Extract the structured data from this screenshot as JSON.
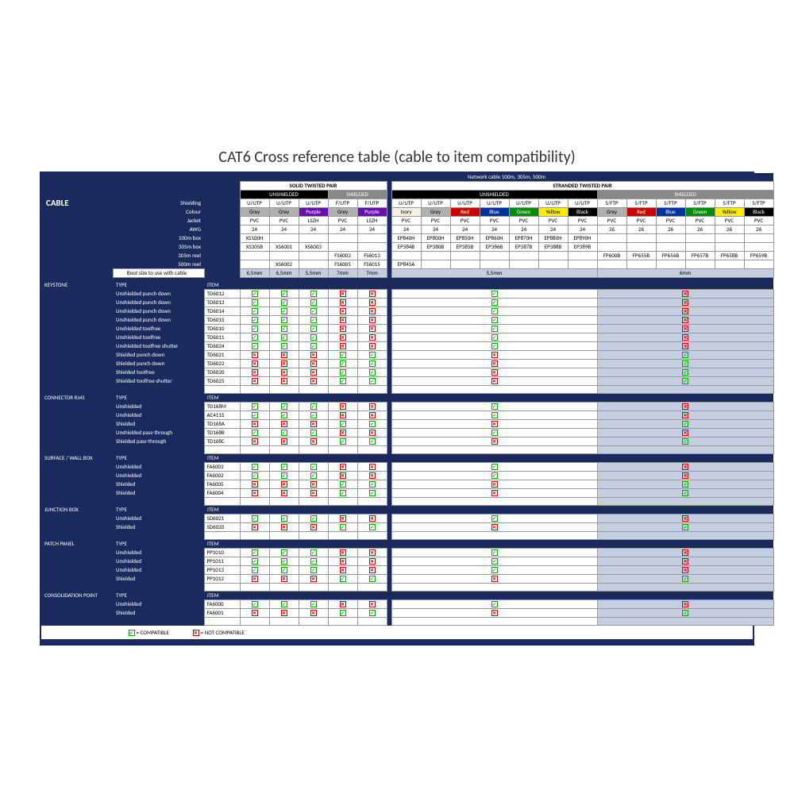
{
  "title": "CAT6 Cross reference table (cable to item compatibility)",
  "subtitle": "Network cable 100m, 305m, 500m",
  "cable_label": "CABLE",
  "solid_hdr": "SOLID TWISTED PAIR",
  "stranded_hdr": "STRANDED TWISTED PAIR",
  "unshielded": "UNSHIELDED",
  "shielded": "SHIELDED",
  "rows_meta": {
    "shielding": "Shielding",
    "colour": "Colour",
    "jacket": "Jacket",
    "awg": "AWG",
    "b100": "100m box",
    "b305": "305m box",
    "r305": "305m reel",
    "r500": "500m reel",
    "boot": "Boot size to use with cable"
  },
  "solid": {
    "shield": [
      "U/UTP",
      "U/UTP",
      "U/UTP",
      "F/UTP",
      "F/UTP"
    ],
    "colour": [
      {
        "t": "Grey",
        "bg": "#b0b0b0",
        "fg": "#000"
      },
      {
        "t": "Grey",
        "bg": "#b0b0b0",
        "fg": "#000"
      },
      {
        "t": "Purple",
        "bg": "#6a0dad",
        "fg": "#fff"
      },
      {
        "t": "Grey",
        "bg": "#b0b0b0",
        "fg": "#000"
      },
      {
        "t": "Purple",
        "bg": "#6a0dad",
        "fg": "#fff"
      }
    ],
    "jacket": [
      "PVC",
      "PVC",
      "LSZH",
      "PVC",
      "LSZH"
    ],
    "awg": [
      "24",
      "24",
      "24",
      "24",
      "24"
    ],
    "b100": [
      "XS100H",
      "",
      "",
      "",
      ""
    ],
    "b305": [
      "XS305B",
      "XS6001",
      "XS6003",
      "",
      ""
    ],
    "r305": [
      "",
      "",
      "",
      "FS6003",
      "FS6013"
    ],
    "r500": [
      "",
      "XS6002",
      "",
      "FS6005",
      "FS6015"
    ],
    "boot": [
      "6,5mm",
      "6,5mm",
      "5,5mm",
      "7mm",
      "7mm"
    ]
  },
  "stranded": {
    "shield": [
      "U/UTP",
      "U/UTP",
      "U/UTP",
      "U/UTP",
      "U/UTP",
      "U/UTP",
      "U/UTP",
      "S/FTP",
      "S/FTP",
      "S/FTP",
      "S/FTP",
      "S/FTP",
      "S/FTP"
    ],
    "colour": [
      {
        "t": "Ivory",
        "bg": "#f5f0e1",
        "fg": "#000"
      },
      {
        "t": "Grey",
        "bg": "#b0b0b0",
        "fg": "#000"
      },
      {
        "t": "Red",
        "bg": "#c00",
        "fg": "#fff"
      },
      {
        "t": "Blue",
        "bg": "#0033a0",
        "fg": "#fff"
      },
      {
        "t": "Green",
        "bg": "#0a8a0a",
        "fg": "#fff"
      },
      {
        "t": "Yellow",
        "bg": "#ffeb00",
        "fg": "#000"
      },
      {
        "t": "Black",
        "bg": "#000",
        "fg": "#fff"
      },
      {
        "t": "Grey",
        "bg": "#b0b0b0",
        "fg": "#000"
      },
      {
        "t": "Red",
        "bg": "#c00",
        "fg": "#fff"
      },
      {
        "t": "Blue",
        "bg": "#0033a0",
        "fg": "#fff"
      },
      {
        "t": "Green",
        "bg": "#0a8a0a",
        "fg": "#fff"
      },
      {
        "t": "Yellow",
        "bg": "#ffeb00",
        "fg": "#000"
      },
      {
        "t": "Black",
        "bg": "#000",
        "fg": "#fff"
      }
    ],
    "jacket": [
      "PVC",
      "PVC",
      "PVC",
      "PVC",
      "PVC",
      "PVC",
      "PVC",
      "PVC",
      "PVC",
      "PVC",
      "PVC",
      "PVC",
      "PVC"
    ],
    "awg": [
      "24",
      "24",
      "24",
      "24",
      "24",
      "24",
      "24",
      "26",
      "26",
      "26",
      "26",
      "26",
      "26"
    ],
    "b100": [
      "EP840H",
      "EP800H",
      "EP850H",
      "EP860H",
      "EP870H",
      "EP880H",
      "EP890H",
      "",
      "",
      "",
      "",
      "",
      ""
    ],
    "b305": [
      "EP384B",
      "EP380B",
      "EP385B",
      "EP386B",
      "EP387B",
      "EP388B",
      "EP389B",
      "",
      "",
      "",
      "",
      "",
      ""
    ],
    "r305": [
      "",
      "",
      "",
      "",
      "",
      "",
      "",
      "FP600B",
      "FP655B",
      "FP656B",
      "FP657B",
      "FP658B",
      "FP659B"
    ],
    "r500": [
      "EP845A",
      "",
      "",
      "",
      "",
      "",
      "",
      "",
      "",
      "",
      "",
      "",
      ""
    ],
    "boot_u": "5,5mm",
    "boot_s": "6mm"
  },
  "sections": [
    {
      "name": "KEYSTONE",
      "rows": [
        {
          "type": "Unshielded punch down",
          "item": "TD6012",
          "s": [
            "Y",
            "Y",
            "Y",
            "N",
            "N"
          ],
          "u": "Y",
          "sh": "N"
        },
        {
          "type": "Unshielded punch down",
          "item": "TD6013",
          "s": [
            "Y",
            "Y",
            "Y",
            "N",
            "N"
          ],
          "u": "Y",
          "sh": "N"
        },
        {
          "type": "Unshielded punch down",
          "item": "TD6014",
          "s": [
            "Y",
            "Y",
            "Y",
            "N",
            "N"
          ],
          "u": "Y",
          "sh": "N"
        },
        {
          "type": "Unshielded punch down",
          "item": "TD6015",
          "s": [
            "Y",
            "Y",
            "Y",
            "N",
            "N"
          ],
          "u": "Y",
          "sh": "N"
        },
        {
          "type": "Unshielded toolfree",
          "item": "TD6010",
          "s": [
            "Y",
            "Y",
            "Y",
            "N",
            "N"
          ],
          "u": "Y",
          "sh": "N"
        },
        {
          "type": "Unshielded toolfree",
          "item": "TD6011",
          "s": [
            "Y",
            "Y",
            "Y",
            "N",
            "N"
          ],
          "u": "Y",
          "sh": "N"
        },
        {
          "type": "Unshielded toolfree shutter",
          "item": "TD6024",
          "s": [
            "Y",
            "Y",
            "Y",
            "N",
            "N"
          ],
          "u": "Y",
          "sh": "N"
        },
        {
          "type": "Shielded punch down",
          "item": "TD6021",
          "s": [
            "N",
            "N",
            "N",
            "Y",
            "Y"
          ],
          "u": "N",
          "sh": "Y"
        },
        {
          "type": "Shielded punch down",
          "item": "TD6022",
          "s": [
            "N",
            "N",
            "N",
            "Y",
            "Y"
          ],
          "u": "N",
          "sh": "Y"
        },
        {
          "type": "Shielded toolfree",
          "item": "TD6020",
          "s": [
            "N",
            "N",
            "N",
            "Y",
            "Y"
          ],
          "u": "N",
          "sh": "Y"
        },
        {
          "type": "Shielded toolfree shutter",
          "item": "TD6025",
          "s": [
            "N",
            "N",
            "N",
            "Y",
            "Y"
          ],
          "u": "N",
          "sh": "Y"
        }
      ]
    },
    {
      "name": "CONNECTOR RJ45",
      "rows": [
        {
          "type": "Unshielded",
          "item": "TD168M",
          "s": [
            "Y",
            "Y",
            "Y",
            "N",
            "N"
          ],
          "u": "Y",
          "sh": "N"
        },
        {
          "type": "Unshielded",
          "item": "AC4115",
          "s": [
            "Y",
            "Y",
            "Y",
            "N",
            "N"
          ],
          "u": "Y",
          "sh": "N"
        },
        {
          "type": "Shielded",
          "item": "TD168A",
          "s": [
            "N",
            "N",
            "N",
            "Y",
            "Y"
          ],
          "u": "N",
          "sh": "Y"
        },
        {
          "type": "Unshielded pass-through",
          "item": "TD168B",
          "s": [
            "Y",
            "Y",
            "Y",
            "N",
            "N"
          ],
          "u": "Y",
          "sh": "N"
        },
        {
          "type": "Shielded pass-through",
          "item": "TD168C",
          "s": [
            "N",
            "N",
            "N",
            "Y",
            "Y"
          ],
          "u": "N",
          "sh": "Y"
        }
      ]
    },
    {
      "name": "SURFACE / WALL BOX",
      "rows": [
        {
          "type": "Unshielded",
          "item": "FA6003",
          "s": [
            "Y",
            "Y",
            "Y",
            "N",
            "N"
          ],
          "u": "Y",
          "sh": "N"
        },
        {
          "type": "Unshielded",
          "item": "FA6002",
          "s": [
            "Y",
            "Y",
            "Y",
            "N",
            "N"
          ],
          "u": "Y",
          "sh": "N"
        },
        {
          "type": "Shielded",
          "item": "FA6005",
          "s": [
            "N",
            "N",
            "N",
            "Y",
            "Y"
          ],
          "u": "N",
          "sh": "Y"
        },
        {
          "type": "Shielded",
          "item": "FA6004",
          "s": [
            "N",
            "N",
            "N",
            "Y",
            "Y"
          ],
          "u": "N",
          "sh": "Y"
        }
      ]
    },
    {
      "name": "JUNCTION BOX",
      "rows": [
        {
          "type": "Unshielded",
          "item": "SD6021",
          "s": [
            "Y",
            "Y",
            "Y",
            "N",
            "N"
          ],
          "u": "Y",
          "sh": "N"
        },
        {
          "type": "Shielded",
          "item": "SD6020",
          "s": [
            "N",
            "N",
            "N",
            "Y",
            "Y"
          ],
          "u": "N",
          "sh": "Y"
        }
      ]
    },
    {
      "name": "PATCH PANEL",
      "rows": [
        {
          "type": "Unshielded",
          "item": "PP1010",
          "s": [
            "Y",
            "Y",
            "Y",
            "N",
            "N"
          ],
          "u": "Y",
          "sh": "N"
        },
        {
          "type": "Unshielded",
          "item": "PP1011",
          "s": [
            "Y",
            "Y",
            "Y",
            "N",
            "N"
          ],
          "u": "Y",
          "sh": "N"
        },
        {
          "type": "Unshielded",
          "item": "PP1013",
          "s": [
            "Y",
            "Y",
            "Y",
            "N",
            "N"
          ],
          "u": "Y",
          "sh": "N"
        },
        {
          "type": "Shielded",
          "item": "PP1012",
          "s": [
            "N",
            "N",
            "N",
            "Y",
            "Y"
          ],
          "u": "N",
          "sh": "Y"
        }
      ]
    },
    {
      "name": "CONSOLIDATION POINT",
      "rows": [
        {
          "type": "Unshielded",
          "item": "FA6000",
          "s": [
            "Y",
            "Y",
            "Y",
            "N",
            "N"
          ],
          "u": "Y",
          "sh": "N"
        },
        {
          "type": "Shielded",
          "item": "FA6001",
          "s": [
            "N",
            "N",
            "N",
            "Y",
            "Y"
          ],
          "u": "N",
          "sh": "Y"
        }
      ]
    }
  ],
  "legend": {
    "ok": "= COMPATIBLE",
    "no": "= NOT COMPATIBLE"
  },
  "type_hdr": "TYPE",
  "item_hdr": "ITEM"
}
